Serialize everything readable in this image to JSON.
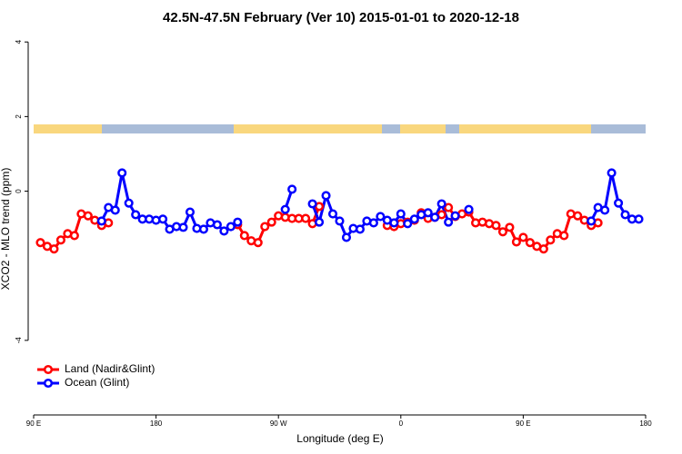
{
  "chart_data": {
    "type": "line",
    "title": "42.5N-47.5N February (Ver 10)   2015-01-01 to 2020-12-18",
    "x_label": "Longitude (deg E)",
    "y_label": "XCO2 - MLO trend (ppm)",
    "x": [
      95,
      100,
      105,
      110,
      115,
      120,
      125,
      130,
      135,
      140,
      145,
      150,
      155,
      160,
      165,
      170,
      175,
      180,
      185,
      190,
      195,
      200,
      205,
      210,
      215,
      220,
      225,
      230,
      235,
      240,
      245,
      250,
      255,
      260,
      265,
      270,
      275,
      280,
      285,
      290,
      295,
      300,
      305,
      310,
      315,
      320,
      325,
      330,
      335,
      340,
      345,
      350,
      355,
      360,
      365,
      370,
      375,
      380,
      385,
      390,
      395,
      400,
      405,
      410,
      415,
      420,
      425,
      430,
      435,
      440,
      445,
      450,
      455,
      460,
      465,
      470,
      475,
      480,
      485,
      490,
      495,
      500,
      505,
      510,
      515,
      520,
      525,
      530,
      535
    ],
    "xlim": [
      90,
      540
    ],
    "xticks": [
      {
        "value": 90,
        "label": "90 E"
      },
      180,
      {
        "value": 270,
        "label": "90 W"
      },
      {
        "value": 360,
        "label": "0"
      },
      {
        "value": 450,
        "label": "90 E"
      },
      {
        "value": 540,
        "label": "180"
      }
    ],
    "ylim": [
      -6,
      4.2
    ],
    "yticks": [
      -4,
      0,
      2,
      4
    ],
    "legend": "bottomleft",
    "series": [
      {
        "name": "Land (Nadir&Glint)",
        "color": "#ff0000",
        "values": [
          -1.38,
          -1.48,
          -1.55,
          -1.31,
          -1.14,
          -1.19,
          -0.61,
          -0.66,
          -0.78,
          -0.92,
          -0.85,
          null,
          null,
          null,
          null,
          null,
          null,
          null,
          null,
          null,
          null,
          null,
          null,
          null,
          null,
          null,
          null,
          null,
          null,
          -0.9,
          -1.19,
          -1.33,
          -1.38,
          -0.95,
          -0.83,
          -0.66,
          -0.7,
          -0.73,
          -0.73,
          -0.73,
          -0.87,
          -0.41,
          null,
          null,
          null,
          null,
          null,
          null,
          null,
          null,
          null,
          -0.92,
          -0.95,
          -0.87,
          -0.83,
          -0.78,
          -0.58,
          -0.73,
          -0.7,
          -0.63,
          -0.44,
          -0.68,
          -0.61,
          -0.56,
          -0.85,
          -0.83,
          -0.87,
          -0.92,
          -1.09,
          -0.97,
          -1.36,
          -1.24,
          -1.38,
          -1.48,
          -1.55,
          -1.31,
          -1.14,
          -1.19,
          -0.61,
          -0.66,
          -0.78,
          -0.92,
          -0.85,
          null,
          null,
          null,
          null,
          null,
          null
        ]
      },
      {
        "name": "Ocean (Glint)",
        "color": "#0000ff",
        "values": [
          null,
          null,
          null,
          null,
          null,
          null,
          null,
          null,
          null,
          -0.8,
          -0.44,
          -0.51,
          0.49,
          -0.32,
          -0.63,
          -0.75,
          -0.75,
          -0.78,
          -0.75,
          -1.02,
          -0.95,
          -0.97,
          -0.56,
          -1.0,
          -1.02,
          -0.85,
          -0.9,
          -1.07,
          -0.95,
          -0.83,
          null,
          null,
          null,
          null,
          null,
          null,
          -0.49,
          0.05,
          null,
          null,
          -0.34,
          -0.83,
          -0.12,
          -0.61,
          -0.8,
          -1.24,
          -1.0,
          -1.02,
          -0.8,
          -0.85,
          -0.68,
          -0.78,
          -0.85,
          -0.61,
          -0.87,
          -0.75,
          -0.63,
          -0.58,
          -0.7,
          -0.34,
          -0.83,
          -0.66,
          null,
          -0.49,
          null,
          null,
          null,
          null,
          null,
          null,
          null,
          null,
          null,
          null,
          null,
          null,
          null,
          null,
          null,
          null,
          null,
          -0.8,
          -0.44,
          -0.51,
          0.49,
          -0.32,
          -0.63,
          -0.75,
          -0.75
        ]
      }
    ]
  }
}
